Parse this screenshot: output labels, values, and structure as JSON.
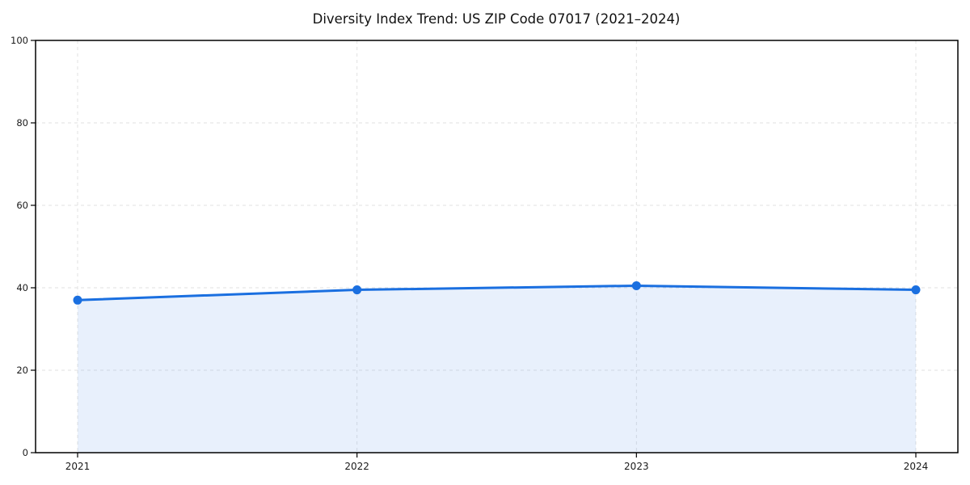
{
  "title": "Diversity Index Trend: US ZIP Code 07017 (2021–2024)",
  "chart_data": {
    "type": "area",
    "title": "Diversity Index Trend: US ZIP Code 07017 (2021–2024)",
    "x": [
      2021,
      2022,
      2023,
      2024
    ],
    "xticklabels": [
      "2021",
      "2022",
      "2023",
      "2024"
    ],
    "series": [
      {
        "name": "Diversity Index",
        "values": [
          37.0,
          39.5,
          40.5,
          39.5
        ]
      }
    ],
    "xlabel": "",
    "ylabel": "",
    "ylim": [
      0,
      100
    ],
    "yticks": [
      0,
      20,
      40,
      60,
      80,
      100
    ],
    "grid": true,
    "grid_style": "dashed",
    "legend_position": "none",
    "line_color": "#1a6fe0",
    "marker_color": "#1a6fe0",
    "fill_color": "rgba(26, 111, 224, 0.10)",
    "grid_color": "#e2e2e2",
    "spine_color": "#000000",
    "tick_text_color": "#1a1a1a",
    "background_color": "#ffffff"
  }
}
